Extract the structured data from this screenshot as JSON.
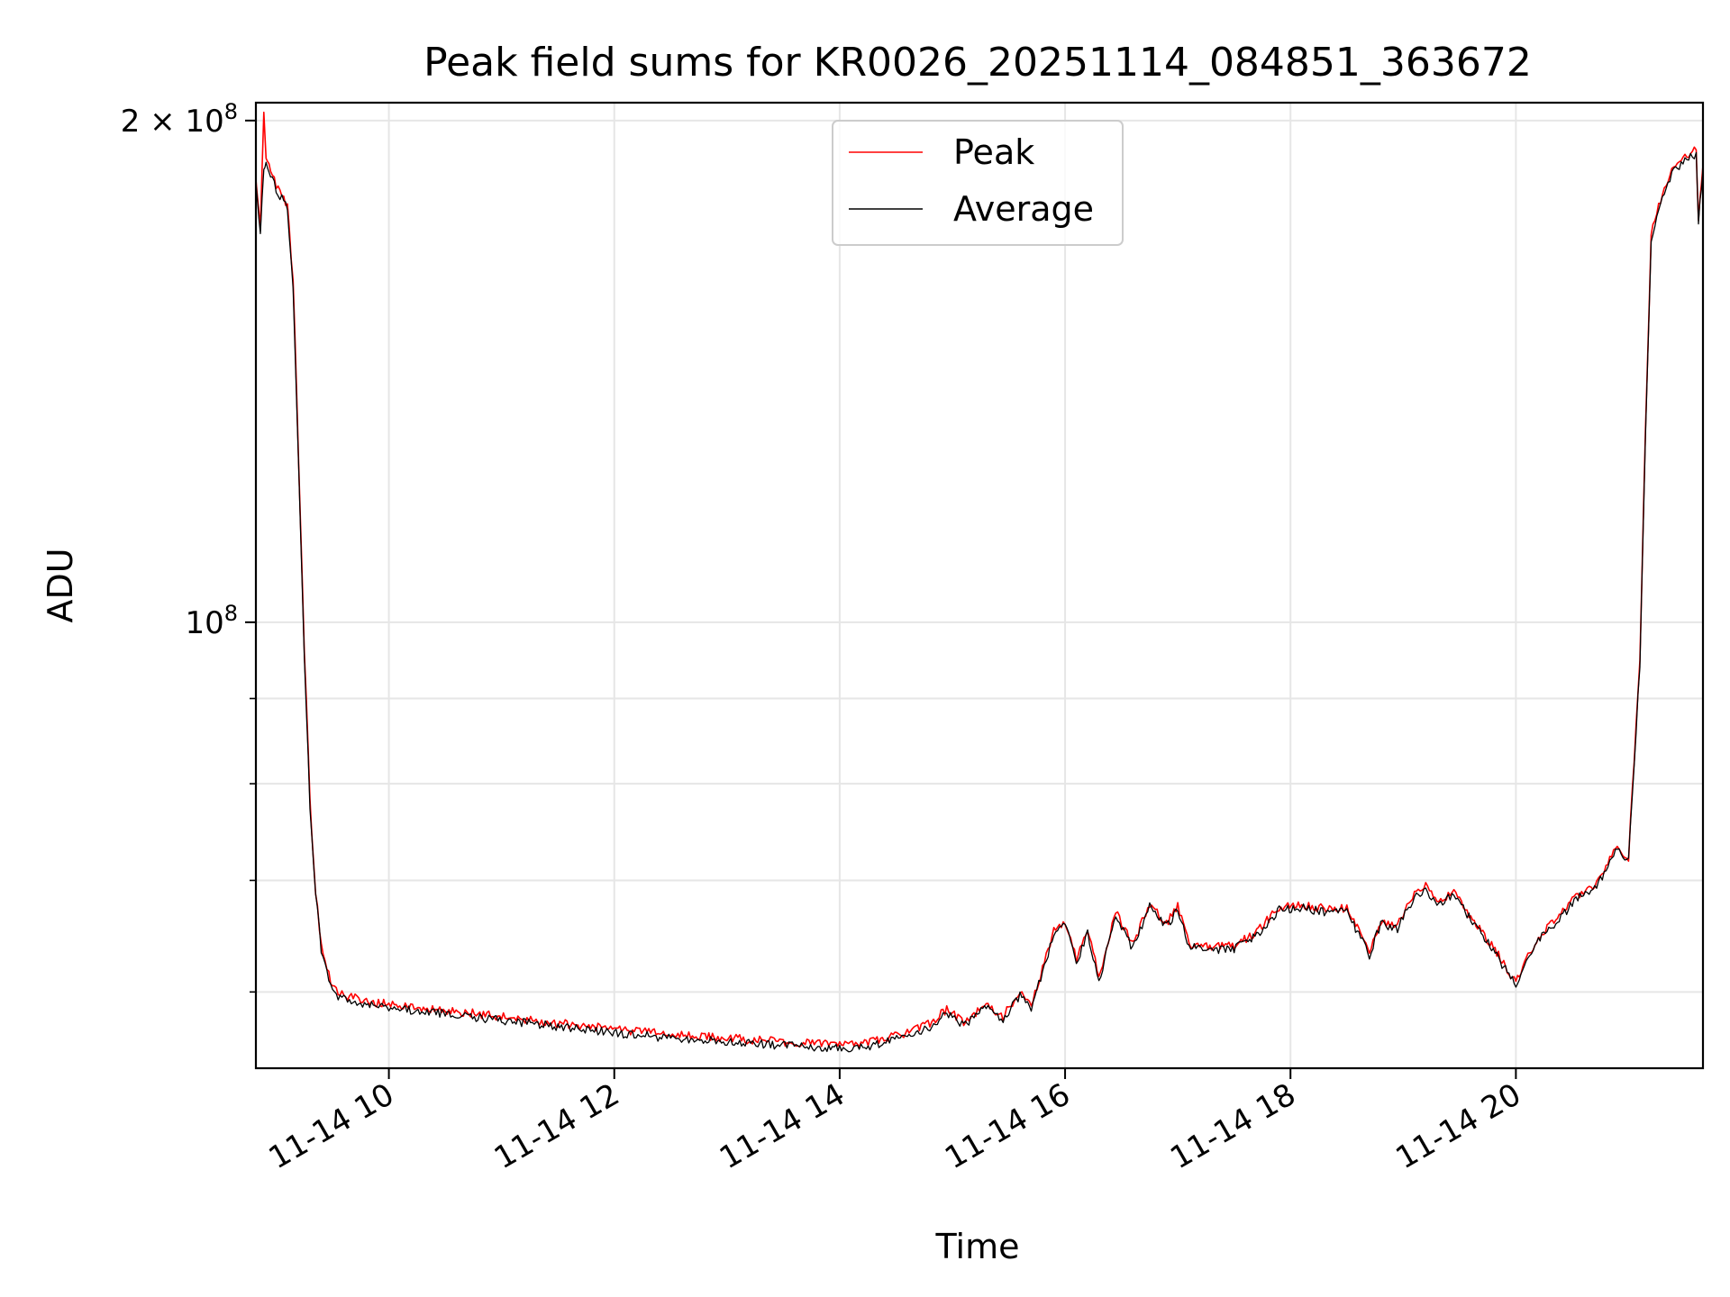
{
  "chart_data": {
    "type": "line",
    "title": "Peak field sums for KR0026_20251114_084851_363672",
    "xlabel": "Time",
    "ylabel": "ADU",
    "x_unit": "hours (decimal, 2025-11-14)",
    "xlim": [
      8.82,
      21.66
    ],
    "ylim": [
      54000000,
      205000000
    ],
    "yscale": "log",
    "grid": true,
    "legend_position": "top-center",
    "x_ticks": [
      {
        "value": 10,
        "label": "11-14 10"
      },
      {
        "value": 12,
        "label": "11-14 12"
      },
      {
        "value": 14,
        "label": "11-14 14"
      },
      {
        "value": 16,
        "label": "11-14 16"
      },
      {
        "value": 18,
        "label": "11-14 18"
      },
      {
        "value": 20,
        "label": "11-14 20"
      }
    ],
    "y_major_ticks": [
      {
        "value": 100000000,
        "base": "10",
        "exp": "8",
        "prefix": ""
      },
      {
        "value": 200000000,
        "base": "10",
        "exp": "8",
        "prefix": "2 × "
      }
    ],
    "y_minor_ticks": [
      60000000,
      70000000,
      80000000,
      90000000
    ],
    "series": [
      {
        "name": "Peak",
        "color": "#ff0000",
        "x": [
          8.82,
          8.86,
          8.89,
          8.91,
          8.95,
          9.0,
          9.1,
          9.15,
          9.2,
          9.25,
          9.3,
          9.35,
          9.4,
          9.45,
          9.5,
          9.55,
          9.6,
          9.7,
          9.8,
          10.0,
          10.5,
          11.0,
          11.5,
          12.0,
          12.5,
          13.0,
          13.5,
          14.0,
          14.3,
          14.6,
          14.8,
          14.95,
          15.1,
          15.3,
          15.45,
          15.6,
          15.7,
          15.8,
          15.9,
          16.0,
          16.1,
          16.2,
          16.3,
          16.45,
          16.6,
          16.75,
          16.9,
          17.0,
          17.1,
          17.3,
          17.5,
          17.7,
          17.9,
          18.1,
          18.3,
          18.5,
          18.7,
          18.8,
          18.95,
          19.1,
          19.2,
          19.3,
          19.45,
          19.6,
          19.8,
          20.0,
          20.2,
          20.4,
          20.55,
          20.7,
          20.8,
          20.9,
          21.0,
          21.1,
          21.15,
          21.2,
          21.3,
          21.4,
          21.5,
          21.6,
          21.62,
          21.66
        ],
        "y": [
          184000000,
          172000000,
          203000000,
          190000000,
          186000000,
          183000000,
          178000000,
          160000000,
          125000000,
          96000000,
          78000000,
          69000000,
          64000000,
          62000000,
          60500000,
          60000000,
          59700000,
          59500000,
          59200000,
          59000000,
          58500000,
          58000000,
          57500000,
          57000000,
          56600000,
          56300000,
          56000000,
          55800000,
          56000000,
          56700000,
          57400000,
          58600000,
          57600000,
          59000000,
          58000000,
          60000000,
          58800000,
          62000000,
          65200000,
          66200000,
          62800000,
          65400000,
          61200000,
          67000000,
          64000000,
          67800000,
          66000000,
          67500000,
          64200000,
          63800000,
          64000000,
          65200000,
          67500000,
          67700000,
          67300000,
          67400000,
          63400000,
          66200000,
          65800000,
          68800000,
          69500000,
          67800000,
          69100000,
          66600000,
          63800000,
          60800000,
          64800000,
          66800000,
          68600000,
          69600000,
          71300000,
          73400000,
          72200000,
          95000000,
          130000000,
          171000000,
          181000000,
          188000000,
          190000000,
          192000000,
          175000000,
          188000000
        ]
      },
      {
        "name": "Average",
        "color": "#000000",
        "x": [
          8.82,
          8.86,
          8.89,
          8.91,
          8.95,
          9.0,
          9.1,
          9.15,
          9.2,
          9.25,
          9.3,
          9.35,
          9.4,
          9.45,
          9.5,
          9.55,
          9.6,
          9.7,
          9.8,
          10.0,
          10.5,
          11.0,
          11.5,
          12.0,
          12.5,
          13.0,
          13.5,
          14.0,
          14.3,
          14.6,
          14.8,
          14.95,
          15.1,
          15.3,
          15.45,
          15.6,
          15.7,
          15.8,
          15.9,
          16.0,
          16.1,
          16.2,
          16.3,
          16.45,
          16.6,
          16.75,
          16.9,
          17.0,
          17.1,
          17.3,
          17.5,
          17.7,
          17.9,
          18.1,
          18.3,
          18.5,
          18.7,
          18.8,
          18.95,
          19.1,
          19.2,
          19.3,
          19.45,
          19.6,
          19.8,
          20.0,
          20.2,
          20.4,
          20.55,
          20.7,
          20.8,
          20.9,
          21.0,
          21.1,
          21.15,
          21.2,
          21.3,
          21.4,
          21.5,
          21.6,
          21.62,
          21.66
        ],
        "y": [
          183000000,
          171000000,
          188000000,
          188000000,
          185000000,
          182000000,
          177000000,
          159000000,
          124000000,
          95000000,
          77500000,
          68700000,
          63700000,
          61700000,
          60200000,
          59700000,
          59400000,
          59200000,
          58900000,
          58700000,
          58200000,
          57700000,
          57200000,
          56700000,
          56300000,
          56000000,
          55700000,
          55500000,
          55700000,
          56400000,
          57100000,
          58300000,
          57300000,
          58700000,
          57700000,
          59700000,
          58500000,
          61700000,
          64900000,
          65900000,
          62500000,
          65100000,
          60900000,
          66700000,
          63700000,
          67500000,
          65700000,
          67200000,
          63900000,
          63500000,
          63700000,
          64900000,
          67200000,
          67400000,
          67000000,
          67100000,
          63100000,
          65900000,
          65500000,
          68500000,
          69200000,
          67500000,
          68800000,
          66300000,
          63500000,
          60500000,
          64500000,
          66500000,
          68300000,
          69300000,
          71000000,
          73100000,
          71900000,
          94500000,
          129000000,
          170000000,
          180000000,
          187000000,
          189000000,
          191000000,
          174000000,
          187000000
        ]
      }
    ]
  }
}
